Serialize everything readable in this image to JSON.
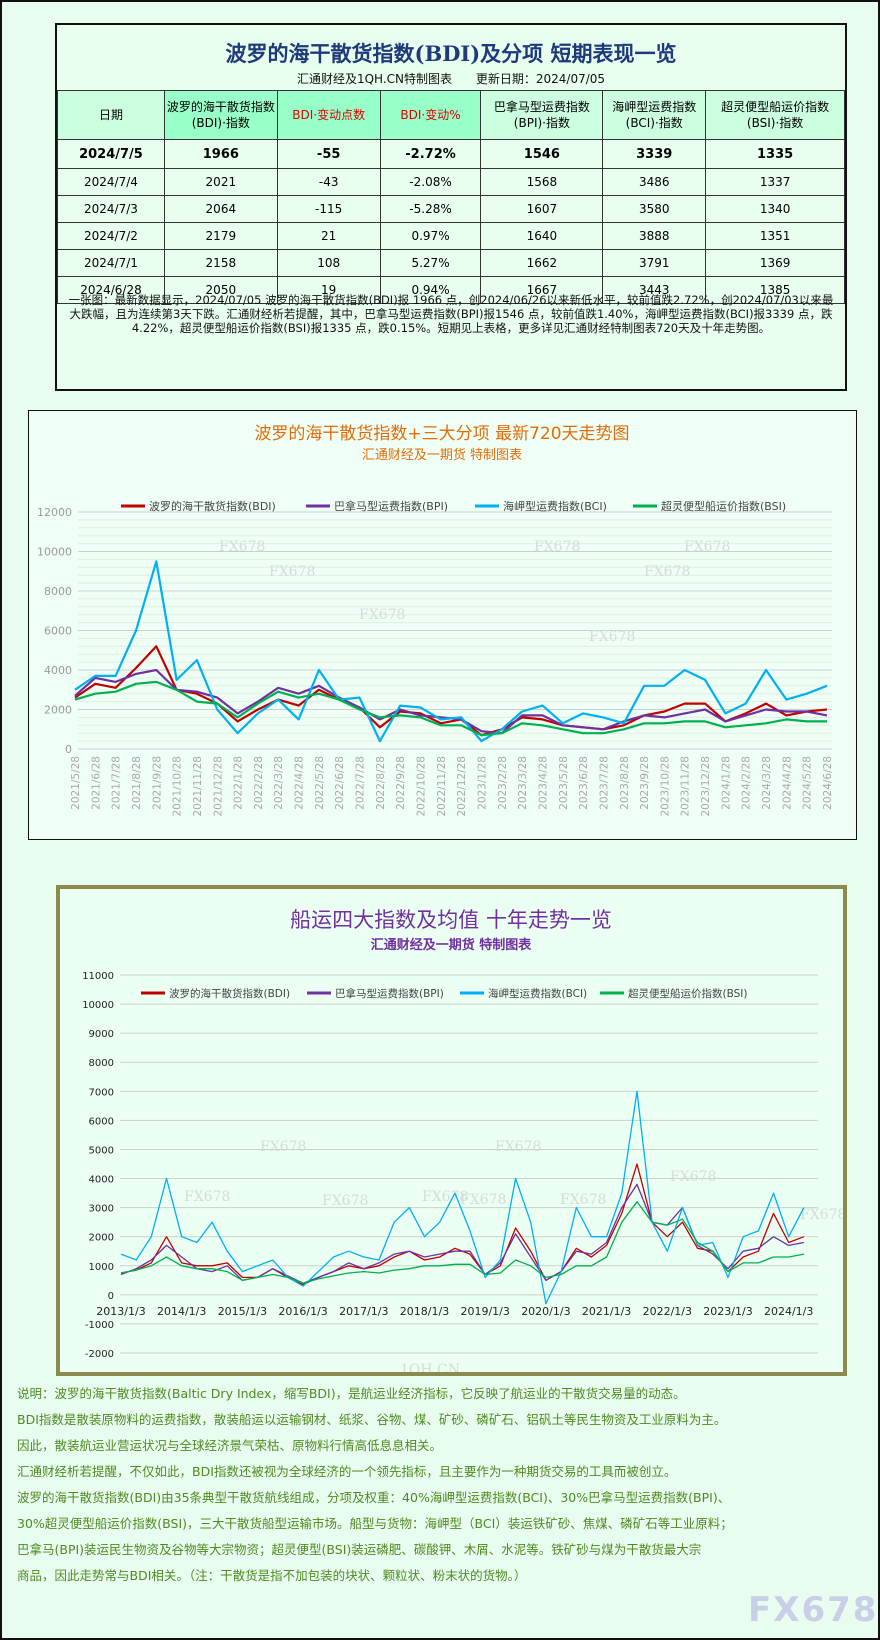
{
  "table": {
    "title": "波罗的海干散货指数(BDI)及分项 短期表现一览",
    "source": "汇通财经及1QH.CN特制图表",
    "updated": "更新日期：2024/07/05",
    "headers": [
      "日期",
      "波罗的海干散货指数(BDI)·指数",
      "BDI·变动点数",
      "BDI·变动%",
      "巴拿马型运费指数(BPI)·指数",
      "海岬型运费指数(BCI)·指数",
      "超灵便型船运价指数(BSI)·指数"
    ],
    "rows": [
      [
        "2024/7/5",
        "1966",
        "-55",
        "-2.72%",
        "1546",
        "3339",
        "1335"
      ],
      [
        "2024/7/4",
        "2021",
        "-43",
        "-2.08%",
        "1568",
        "3486",
        "1337"
      ],
      [
        "2024/7/3",
        "2064",
        "-115",
        "-5.28%",
        "1607",
        "3580",
        "1340"
      ],
      [
        "2024/7/2",
        "2179",
        "21",
        "0.97%",
        "1640",
        "3888",
        "1351"
      ],
      [
        "2024/7/1",
        "2158",
        "108",
        "5.27%",
        "1662",
        "3791",
        "1369"
      ],
      [
        "2024/6/28",
        "2050",
        "19",
        "0.94%",
        "1667",
        "3443",
        "1385"
      ]
    ],
    "note": "一张图：最新数据显示，2024/07/05 波罗的海干散货指数(BDI)报 1966 点，创2024/06/26以来新低水平，较前值跌2.72%，创2024/07/03以来最大跌幅，且为连续第3天下跌。汇通财经析若提醒，其中，巴拿马型运费指数(BPI)报1546 点，较前值跌1.40%，海岬型运费指数(BCI)报3339 点，跌4.22%，超灵便型船运价指数(BSI)报1335 点，跌0.15%。短期见上表格，更多详见汇通财经特制图表720天及十年走势图。"
  },
  "colors": {
    "BDI": "#c00000",
    "BPI": "#7030a0",
    "BCI": "#00b0f0",
    "BSI": "#00b050"
  },
  "chart_data": [
    {
      "type": "line",
      "title": "波罗的海干散货指数+三大分项  最新720天走势图",
      "subtitle": "汇通财经及一期货  特制图表",
      "ylim": [
        0,
        12000
      ],
      "yticks": [
        "0",
        "2000",
        "4000",
        "6000",
        "8000",
        "10000",
        "12000"
      ],
      "grid": true,
      "legend": "top",
      "watermarks": [
        "FX678",
        "FX678",
        "FX678",
        "FX678",
        "FX678",
        "FX678",
        "FX678"
      ],
      "categories": [
        "2021/5/28",
        "2021/6/28",
        "2021/7/28",
        "2021/8/28",
        "2021/9/28",
        "2021/10/28",
        "2021/11/28",
        "2021/12/28",
        "2022/1/28",
        "2022/2/28",
        "2022/3/28",
        "2022/4/28",
        "2022/5/28",
        "2022/6/28",
        "2022/7/28",
        "2022/8/28",
        "2022/9/28",
        "2022/10/28",
        "2022/11/28",
        "2022/12/28",
        "2023/1/28",
        "2023/2/28",
        "2023/3/28",
        "2023/4/28",
        "2023/5/28",
        "2023/6/28",
        "2023/7/28",
        "2023/8/28",
        "2023/9/28",
        "2023/10/28",
        "2023/11/28",
        "2023/12/28",
        "2024/1/28",
        "2024/2/28",
        "2024/3/28",
        "2024/4/28",
        "2024/5/28",
        "2024/6/28"
      ],
      "series": [
        {
          "name": "波罗的海干散货指数(BDI)",
          "key": "BDI",
          "values": [
            2600,
            3300,
            3100,
            4100,
            5200,
            3000,
            2800,
            2300,
            1400,
            2000,
            2500,
            2200,
            3000,
            2500,
            2100,
            1100,
            1900,
            1800,
            1300,
            1500,
            700,
            1000,
            1600,
            1500,
            1200,
            1100,
            1000,
            1200,
            1700,
            1900,
            2300,
            2300,
            1400,
            1800,
            2300,
            1700,
            1900,
            2000
          ]
        },
        {
          "name": "巴拿马型运费指数(BPI)",
          "key": "BPI",
          "values": [
            2700,
            3600,
            3400,
            3800,
            4000,
            3000,
            2900,
            2600,
            1800,
            2400,
            3100,
            2800,
            3200,
            2600,
            2100,
            1500,
            2000,
            1700,
            1600,
            1500,
            900,
            800,
            1700,
            1700,
            1200,
            1100,
            1000,
            1400,
            1700,
            1600,
            1800,
            2000,
            1400,
            1700,
            2000,
            1900,
            1900,
            1700
          ]
        },
        {
          "name": "海岬型运费指数(BCI)",
          "key": "BCI",
          "values": [
            3000,
            3700,
            3700,
            6000,
            9500,
            3500,
            4500,
            2000,
            800,
            1800,
            2500,
            1500,
            4000,
            2500,
            2600,
            400,
            2200,
            2100,
            1500,
            1600,
            400,
            1000,
            1900,
            2200,
            1300,
            1800,
            1600,
            1300,
            3200,
            3200,
            4000,
            3500,
            1800,
            2300,
            4000,
            2500,
            2800,
            3200
          ]
        },
        {
          "name": "超灵便型船运价指数(BSI)",
          "key": "BSI",
          "values": [
            2500,
            2800,
            2900,
            3300,
            3400,
            3000,
            2400,
            2300,
            1600,
            2300,
            2900,
            2600,
            2800,
            2500,
            2000,
            1600,
            1700,
            1600,
            1200,
            1200,
            700,
            800,
            1300,
            1200,
            1000,
            800,
            800,
            1000,
            1300,
            1300,
            1400,
            1400,
            1100,
            1200,
            1300,
            1500,
            1400,
            1400
          ]
        }
      ]
    },
    {
      "type": "line",
      "title": "船运四大指数及均值 十年走势一览",
      "subtitle": "汇通财经及一期货 特制图表",
      "ylim": [
        -2000,
        11000
      ],
      "yticks": [
        "-2000",
        "-1000",
        "0",
        "1000",
        "2000",
        "3000",
        "4000",
        "5000",
        "6000",
        "7000",
        "8000",
        "9000",
        "10000",
        "11000"
      ],
      "xticks": [
        "2013/1/3",
        "2014/1/3",
        "2015/1/3",
        "2016/1/3",
        "2017/1/3",
        "2018/1/3",
        "2019/1/3",
        "2020/1/3",
        "2021/1/3",
        "2022/1/3",
        "2023/1/3",
        "2024/1/3"
      ],
      "x_step": "quarterly from 2013/1/3",
      "grid": true,
      "legend": "top",
      "watermarks": [
        "FX678",
        "FX678",
        "FX678",
        "FX678",
        "FX678",
        "FX678",
        "FX678",
        "FX678",
        "FX678",
        "1QH.CN"
      ],
      "series": [
        {
          "name": "波罗的海干散货指数(BDI)",
          "key": "BDI",
          "values": [
            750,
            850,
            1100,
            2000,
            1100,
            1000,
            1000,
            1100,
            600,
            600,
            900,
            600,
            350,
            600,
            800,
            1000,
            900,
            1000,
            1300,
            1500,
            1200,
            1300,
            1600,
            1400,
            700,
            1000,
            2300,
            1500,
            500,
            800,
            1600,
            1300,
            1700,
            2800,
            4500,
            2500,
            2000,
            2500,
            1600,
            1500,
            800,
            1300,
            1500,
            2800,
            1800,
            2000
          ]
        },
        {
          "name": "巴拿马型运费指数(BPI)",
          "key": "BPI",
          "values": [
            700,
            900,
            1200,
            1700,
            1300,
            900,
            800,
            1000,
            500,
            600,
            900,
            650,
            400,
            600,
            800,
            1100,
            900,
            1100,
            1400,
            1500,
            1300,
            1400,
            1500,
            1500,
            700,
            1100,
            2100,
            1300,
            500,
            800,
            1500,
            1400,
            1800,
            3000,
            3800,
            2500,
            2400,
            3000,
            1700,
            1400,
            900,
            1500,
            1600,
            2000,
            1700,
            1800
          ]
        },
        {
          "name": "海岬型运费指数(BCI)",
          "key": "BCI",
          "values": [
            1400,
            1200,
            2000,
            4000,
            2000,
            1800,
            2500,
            1500,
            800,
            1000,
            1200,
            600,
            300,
            800,
            1300,
            1500,
            1300,
            1200,
            2500,
            3000,
            2000,
            2500,
            3500,
            2200,
            600,
            1200,
            4000,
            2500,
            -300,
            800,
            3000,
            2000,
            2000,
            3500,
            7000,
            2500,
            1500,
            3000,
            1700,
            1800,
            600,
            2000,
            2200,
            3500,
            2000,
            3000
          ]
        },
        {
          "name": "超灵便型船运价指数(BSI)",
          "key": "BSI",
          "values": [
            750,
            850,
            1000,
            1300,
            1000,
            900,
            900,
            800,
            500,
            600,
            700,
            600,
            400,
            550,
            650,
            750,
            800,
            750,
            850,
            900,
            1000,
            1000,
            1050,
            1050,
            700,
            750,
            1200,
            1000,
            600,
            700,
            1000,
            1000,
            1300,
            2500,
            3200,
            2500,
            2400,
            2600,
            1800,
            1500,
            800,
            1100,
            1100,
            1300,
            1300,
            1400
          ]
        }
      ]
    }
  ],
  "notes": [
    "说明：波罗的海干散货指数(Baltic Dry Index，缩写BDI)，是航运业经济指标，它反映了航运业的干散货交易量的动态。",
    "BDI指数是散装原物料的运费指数，散装船运以运输钢材、纸浆、谷物、煤、矿砂、磷矿石、铝矾土等民生物资及工业原料为主。",
    "因此，散装航运业营运状况与全球经济景气荣枯、原物料行情高低息息相关。",
    "汇通财经析若提醒，不仅如此，BDI指数还被视为全球经济的一个领先指标，且主要作为一种期货交易的工具而被创立。",
    "波罗的海干散货指数(BDI)由35条典型干散货航线组成，分项及权重：40%海岬型运费指数(BCI)、30%巴拿马型运费指数(BPI)、",
    "30%超灵便型船运价指数(BSI)，三大干散货船型运输市场。船型与货物：海岬型（BCI）装运铁矿砂、焦煤、磷矿石等工业原料；",
    "巴拿马(BPI)装运民生物资及谷物等大宗物资；超灵便型(BSI)装运磷肥、碳酸钾、木屑、水泥等。铁矿砂与煤为干散货最大宗",
    "商品，因此走势常与BDI相关。（注：干散货是指不加包装的块状、颗粒状、粉末状的货物。）"
  ],
  "watermark": "FX678"
}
